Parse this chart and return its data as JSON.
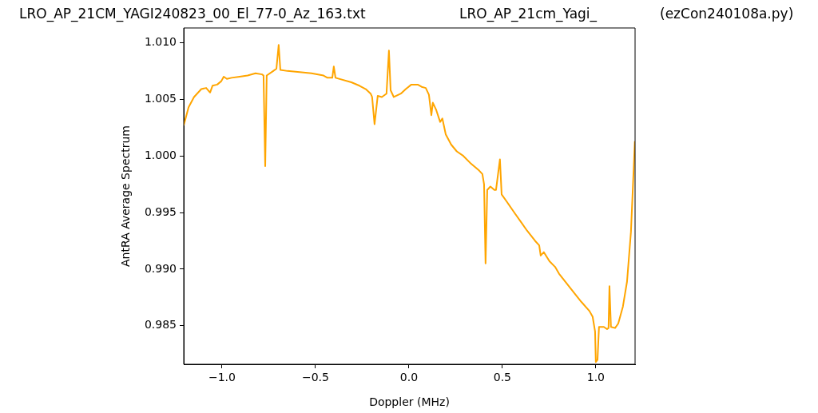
{
  "chart_data": {
    "type": "line",
    "title": "LRO_AP_21CM_YAGI240823_00_El_77-0_Az_163.txt",
    "annotations": [
      "LRO_AP_21cm_Yagi_",
      "(ezCon240108a.py)"
    ],
    "xlabel": "Doppler (MHz)",
    "ylabel": "AntRA Average Spectrum",
    "xlim": [
      -1.205,
      1.21
    ],
    "ylim": [
      0.9816,
      1.0113
    ],
    "xticks": [
      {
        "value": -1,
        "label": "−1.0"
      },
      {
        "value": -0.5,
        "label": "−0.5"
      },
      {
        "value": 0,
        "label": "0.0"
      },
      {
        "value": 0.5,
        "label": "0.5"
      },
      {
        "value": 1,
        "label": "1.0"
      }
    ],
    "yticks": [
      {
        "value": 0.985,
        "label": "0.985"
      },
      {
        "value": 0.99,
        "label": "0.990"
      },
      {
        "value": 0.995,
        "label": "0.995"
      },
      {
        "value": 1,
        "label": "1.000"
      },
      {
        "value": 1.005,
        "label": "1.005"
      },
      {
        "value": 1.01,
        "label": "1.010"
      }
    ],
    "grid": false,
    "legend": false,
    "marker": "none",
    "line_style": "solid",
    "series": [
      {
        "color": "#ffa500",
        "x": [
          -1.205,
          -1.179,
          -1.15,
          -1.111,
          -1.085,
          -1.064,
          -1.051,
          -1.026,
          -1.004,
          -0.991,
          -0.974,
          -0.949,
          -0.906,
          -0.863,
          -0.821,
          -0.786,
          -0.778,
          -0.769,
          -0.761,
          -0.726,
          -0.709,
          -0.697,
          -0.688,
          -0.65,
          -0.585,
          -0.521,
          -0.457,
          -0.436,
          -0.41,
          -0.402,
          -0.393,
          -0.308,
          -0.265,
          -0.231,
          -0.205,
          -0.197,
          -0.184,
          -0.167,
          -0.145,
          -0.12,
          -0.107,
          -0.098,
          -0.081,
          -0.043,
          -0.017,
          0.013,
          0.047,
          0.068,
          0.09,
          0.107,
          0.12,
          0.128,
          0.145,
          0.167,
          0.179,
          0.197,
          0.226,
          0.256,
          0.291,
          0.333,
          0.376,
          0.393,
          0.402,
          0.41,
          0.419,
          0.436,
          0.457,
          0.466,
          0.487,
          0.496,
          0.526,
          0.568,
          0.598,
          0.632,
          0.675,
          0.697,
          0.705,
          0.722,
          0.752,
          0.782,
          0.803,
          0.846,
          0.889,
          0.923,
          0.966,
          0.983,
          0.996,
          1.0,
          1.009,
          1.017,
          1.043,
          1.06,
          1.068,
          1.073,
          1.081,
          1.103,
          1.12,
          1.145,
          1.167,
          1.188,
          1.209
        ],
        "values": [
          1.0027,
          1.0043,
          1.0052,
          1.0059,
          1.006,
          1.0056,
          1.0062,
          1.0063,
          1.0066,
          1.007,
          1.0068,
          1.0069,
          1.007,
          1.0071,
          1.0073,
          1.0072,
          1.0071,
          0.9991,
          1.0071,
          1.0075,
          1.0077,
          1.0098,
          1.0076,
          1.0075,
          1.0074,
          1.0073,
          1.0071,
          1.0069,
          1.0069,
          1.0079,
          1.0069,
          1.0065,
          1.0062,
          1.0059,
          1.0055,
          1.0052,
          1.0028,
          1.0053,
          1.0052,
          1.0055,
          1.0093,
          1.0058,
          1.0052,
          1.0055,
          1.0059,
          1.0063,
          1.0063,
          1.0061,
          1.006,
          1.0054,
          1.0036,
          1.0047,
          1.0041,
          1.003,
          1.0033,
          1.0019,
          1.001,
          1.0004,
          1.0,
          0.9993,
          0.9987,
          0.9984,
          0.9975,
          0.9905,
          0.997,
          0.9973,
          0.997,
          0.997,
          0.9997,
          0.9966,
          0.9959,
          0.9949,
          0.9942,
          0.9934,
          0.9925,
          0.9921,
          0.9912,
          0.9915,
          0.9907,
          0.9902,
          0.9896,
          0.9887,
          0.9878,
          0.9871,
          0.9863,
          0.9858,
          0.9845,
          0.9818,
          0.982,
          0.9849,
          0.9849,
          0.9847,
          0.9848,
          0.9885,
          0.9849,
          0.9848,
          0.9852,
          0.9867,
          0.9889,
          0.9933,
          1.0013
        ]
      }
    ]
  }
}
